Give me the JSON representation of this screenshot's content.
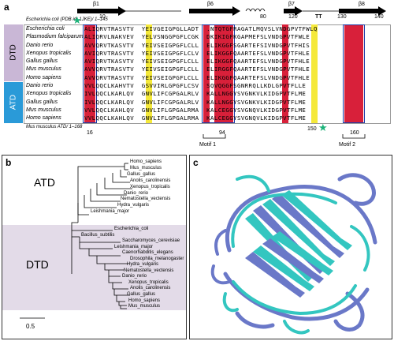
{
  "panels": {
    "a": {
      "label": "a",
      "header_note": "Escherichia coli (PDB id: 1JKE)/ 1–145",
      "footer_note": "Mus musculus ATD/ 1–168",
      "group_labels": [
        "DTD",
        "ATD"
      ],
      "sec_structure": [
        "β1",
        "β6",
        "β7",
        "β8",
        "TT"
      ],
      "ruler_top": [
        "10",
        "80",
        "120",
        "130",
        "140"
      ],
      "ruler_bottom": [
        "16",
        "94",
        "150",
        "160"
      ],
      "motifs": [
        "Motif 1",
        "Motif 2"
      ],
      "species_dtd": [
        "Escherichia coli",
        "Plasmodium falciparum",
        "Danio rerio",
        "Xenopus tropicalis",
        "Gallus gallus",
        "Mus musculus",
        "Homo sapiens"
      ],
      "species_atd": [
        "Danio rerio",
        "Xenopus tropicalis",
        "Gallus gallus",
        "Mus musculus",
        "Homo sapiens"
      ],
      "seq_dtd": [
        "ALIQRVTRASVTV  YEIVGEIGPGLLADT  .NTQTGFRAGATLMQVSLVNDGPVTFWLQ",
        "ALIQRVLNAKVEV  YELVSNGGPGFLCGK  DKIKIGFKGAPMEFSLVNDGPVTFWLE",
        "AVVQRVTKASVTV  YEIVSEIGPGFLCLL  ELIKGGFSGARTEFSIVNDGPVTFHIS",
        "AVIQRVTRASVTV  YEIVSEIGPGFLCLV  ELIKGGFQAARTEFSLVNDGPVTFHLE",
        "AVIQRVTKASVTV  YEIVSEIGPGFLCLL  ELIKGGFQAARTEFSLVNDGPVTFHLE",
        "AVVQRVTRASVTV  YEIVSEIGPGFLCLL  ELIRGGFQAARTEFSLVNDGPVTFHLE",
        "AVVQRVTRASVTV  YEIVSEIGPGFLCLL  ELIKGGFQAARTEFSLVNDGPVTFHLE"
      ],
      "seq_atd": [
        "VVLQQCLKAHVTV  GSVVIRLGPGFLCSV  SQVQGGFSGNRRQLLKDLGPVTFLLE",
        "IVLQQCLKARLQV  GNVLIFCGPGALRLV  KALLNGGYSVGNKVLKIDGPVTFLME",
        "IVLQQCLKARLQV  GNVLIFCGPGALRLV  KALLNGGYSVGNKVLKIDGPVTFLME",
        "VVLQQCLKAHLQV  GNVLIFLGPGALRMA  KALCEGGYSVGNQVLKIDGPVTFLME",
        "VVLQQCLKAHLQV  GNVLIFLGPGALRMA  KALCEGGYSVGNQVLKIDGPVTFLME"
      ]
    },
    "b": {
      "label": "b",
      "atd_label": "ATD",
      "dtd_label": "DTD",
      "scale": "0.5",
      "atd_leaves": [
        "Homo_sapiens",
        "Mus_musculus",
        "Gallus_gallus",
        "Anolis_carolinensis",
        "Xenopus_tropicalis",
        "Danio_rerio",
        "Nematostella_vectensis",
        "Hydra_vulgaris",
        "Leishmania_major"
      ],
      "dtd_leaves": [
        "Escherichia_coli",
        "Bacillus_subtilis",
        "Saccharomyces_cerevisiae",
        "Leishmania_major",
        "Caenorhabditis_elegans",
        "Drosophila_melanogaster",
        "Hydra_vulgaris",
        "Nematostella_vectensis",
        "Danio_rerio",
        "Xenopus_tropicalis",
        "Anolis_carolinensis",
        "Gallus_gallus",
        "Homo_sapiens",
        "Mus_musculus"
      ]
    },
    "c": {
      "label": "c"
    }
  },
  "colors": {
    "dtd_group": "#c9b7d6",
    "atd_group": "#2a9ad8",
    "conserved": "#d8203a",
    "similar": "#f5e93a",
    "box": "#1a3aa8",
    "star": "#1db37a",
    "tree_bg": "#e3dbe8",
    "protein_blue": "#6a78c8",
    "protein_cyan": "#33c6c0"
  },
  "icons": [
    "star-icon",
    "helix-icon",
    "arrow-icon"
  ]
}
